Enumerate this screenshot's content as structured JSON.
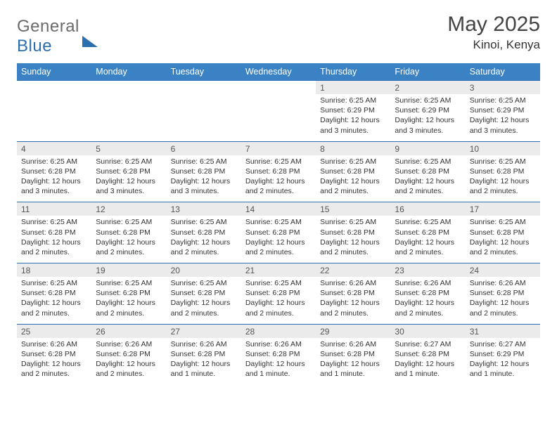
{
  "logo": {
    "part1": "General",
    "part2": "Blue"
  },
  "title": "May 2025",
  "location": "Kinoi, Kenya",
  "colors": {
    "header_bg": "#3b82c4",
    "header_text": "#ffffff",
    "daynum_bg": "#ebebeb",
    "rule": "#2c6fb0",
    "text": "#333333",
    "logo_gray": "#6b6b6b",
    "logo_blue": "#2c6fb0"
  },
  "fonts": {
    "title_pt": 30,
    "location_pt": 17,
    "header_pt": 12.5,
    "daynum_pt": 12,
    "body_pt": 10.5
  },
  "dayNames": [
    "Sunday",
    "Monday",
    "Tuesday",
    "Wednesday",
    "Thursday",
    "Friday",
    "Saturday"
  ],
  "weeks": [
    [
      null,
      null,
      null,
      null,
      {
        "n": "1",
        "sr": "6:25 AM",
        "ss": "6:29 PM",
        "dl": "12 hours and 3 minutes."
      },
      {
        "n": "2",
        "sr": "6:25 AM",
        "ss": "6:29 PM",
        "dl": "12 hours and 3 minutes."
      },
      {
        "n": "3",
        "sr": "6:25 AM",
        "ss": "6:29 PM",
        "dl": "12 hours and 3 minutes."
      }
    ],
    [
      {
        "n": "4",
        "sr": "6:25 AM",
        "ss": "6:28 PM",
        "dl": "12 hours and 3 minutes."
      },
      {
        "n": "5",
        "sr": "6:25 AM",
        "ss": "6:28 PM",
        "dl": "12 hours and 3 minutes."
      },
      {
        "n": "6",
        "sr": "6:25 AM",
        "ss": "6:28 PM",
        "dl": "12 hours and 3 minutes."
      },
      {
        "n": "7",
        "sr": "6:25 AM",
        "ss": "6:28 PM",
        "dl": "12 hours and 2 minutes."
      },
      {
        "n": "8",
        "sr": "6:25 AM",
        "ss": "6:28 PM",
        "dl": "12 hours and 2 minutes."
      },
      {
        "n": "9",
        "sr": "6:25 AM",
        "ss": "6:28 PM",
        "dl": "12 hours and 2 minutes."
      },
      {
        "n": "10",
        "sr": "6:25 AM",
        "ss": "6:28 PM",
        "dl": "12 hours and 2 minutes."
      }
    ],
    [
      {
        "n": "11",
        "sr": "6:25 AM",
        "ss": "6:28 PM",
        "dl": "12 hours and 2 minutes."
      },
      {
        "n": "12",
        "sr": "6:25 AM",
        "ss": "6:28 PM",
        "dl": "12 hours and 2 minutes."
      },
      {
        "n": "13",
        "sr": "6:25 AM",
        "ss": "6:28 PM",
        "dl": "12 hours and 2 minutes."
      },
      {
        "n": "14",
        "sr": "6:25 AM",
        "ss": "6:28 PM",
        "dl": "12 hours and 2 minutes."
      },
      {
        "n": "15",
        "sr": "6:25 AM",
        "ss": "6:28 PM",
        "dl": "12 hours and 2 minutes."
      },
      {
        "n": "16",
        "sr": "6:25 AM",
        "ss": "6:28 PM",
        "dl": "12 hours and 2 minutes."
      },
      {
        "n": "17",
        "sr": "6:25 AM",
        "ss": "6:28 PM",
        "dl": "12 hours and 2 minutes."
      }
    ],
    [
      {
        "n": "18",
        "sr": "6:25 AM",
        "ss": "6:28 PM",
        "dl": "12 hours and 2 minutes."
      },
      {
        "n": "19",
        "sr": "6:25 AM",
        "ss": "6:28 PM",
        "dl": "12 hours and 2 minutes."
      },
      {
        "n": "20",
        "sr": "6:25 AM",
        "ss": "6:28 PM",
        "dl": "12 hours and 2 minutes."
      },
      {
        "n": "21",
        "sr": "6:25 AM",
        "ss": "6:28 PM",
        "dl": "12 hours and 2 minutes."
      },
      {
        "n": "22",
        "sr": "6:26 AM",
        "ss": "6:28 PM",
        "dl": "12 hours and 2 minutes."
      },
      {
        "n": "23",
        "sr": "6:26 AM",
        "ss": "6:28 PM",
        "dl": "12 hours and 2 minutes."
      },
      {
        "n": "24",
        "sr": "6:26 AM",
        "ss": "6:28 PM",
        "dl": "12 hours and 2 minutes."
      }
    ],
    [
      {
        "n": "25",
        "sr": "6:26 AM",
        "ss": "6:28 PM",
        "dl": "12 hours and 2 minutes."
      },
      {
        "n": "26",
        "sr": "6:26 AM",
        "ss": "6:28 PM",
        "dl": "12 hours and 2 minutes."
      },
      {
        "n": "27",
        "sr": "6:26 AM",
        "ss": "6:28 PM",
        "dl": "12 hours and 1 minute."
      },
      {
        "n": "28",
        "sr": "6:26 AM",
        "ss": "6:28 PM",
        "dl": "12 hours and 1 minute."
      },
      {
        "n": "29",
        "sr": "6:26 AM",
        "ss": "6:28 PM",
        "dl": "12 hours and 1 minute."
      },
      {
        "n": "30",
        "sr": "6:27 AM",
        "ss": "6:28 PM",
        "dl": "12 hours and 1 minute."
      },
      {
        "n": "31",
        "sr": "6:27 AM",
        "ss": "6:29 PM",
        "dl": "12 hours and 1 minute."
      }
    ]
  ],
  "labels": {
    "sunrise": "Sunrise:",
    "sunset": "Sunset:",
    "daylight": "Daylight:"
  }
}
